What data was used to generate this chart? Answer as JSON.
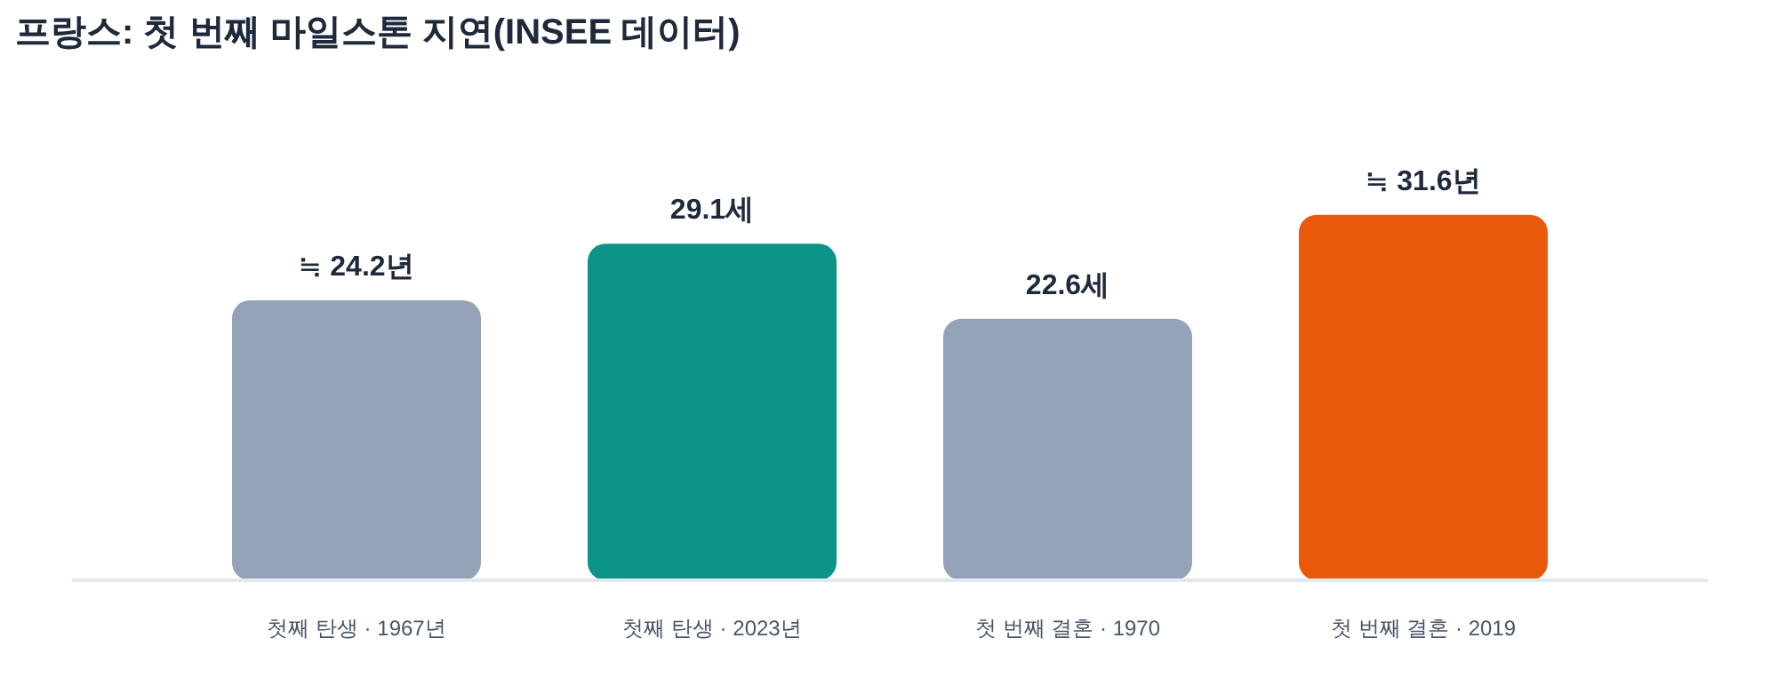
{
  "chart_data": {
    "type": "bar",
    "title": "프랑스: 첫 번째 마일스톤 지연(INSEE 데이터)",
    "categories": [
      "첫째 탄생 · 1967년",
      "첫째 탄생 · 2023년",
      "첫 번째 결혼 · 1970",
      "첫 번째 결혼 · 2019"
    ],
    "values": [
      24.2,
      29.1,
      22.6,
      31.6
    ],
    "colors": [
      "#94a3b8",
      "#0d9488",
      "#94a3b8",
      "#ea580c"
    ],
    "value_labels": [
      "≒ 24.2년",
      "29.1세",
      "22.6세",
      "≒ 31.6년"
    ],
    "grid": false
  }
}
